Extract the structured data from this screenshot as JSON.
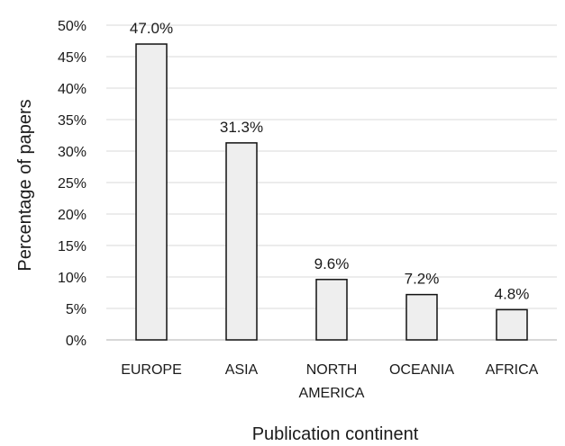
{
  "chart_data": {
    "type": "bar",
    "categories": [
      "EUROPE",
      "ASIA",
      "NORTH AMERICA",
      "OCEANIA",
      "AFRICA"
    ],
    "category_lines": [
      [
        "EUROPE"
      ],
      [
        "ASIA"
      ],
      [
        "NORTH",
        "AMERICA"
      ],
      [
        "OCEANIA"
      ],
      [
        "AFRICA"
      ]
    ],
    "values": [
      47.0,
      31.3,
      9.6,
      7.2,
      4.8
    ],
    "data_labels": [
      "47.0%",
      "31.3%",
      "9.6%",
      "7.2%",
      "4.8%"
    ],
    "xlabel": "Publication continent",
    "ylabel": "Percentage of papers",
    "ylim": [
      0,
      50
    ],
    "yticks": [
      0,
      5,
      10,
      15,
      20,
      25,
      30,
      35,
      40,
      45,
      50
    ],
    "ytick_labels": [
      "0%",
      "5%",
      "10%",
      "15%",
      "20%",
      "25%",
      "30%",
      "35%",
      "40%",
      "45%",
      "50%"
    ],
    "grid": true,
    "legend": "none",
    "colors": {
      "bar_fill": "#eeeeee",
      "bar_stroke": "#111111",
      "grid": "#d9d9d9"
    }
  }
}
